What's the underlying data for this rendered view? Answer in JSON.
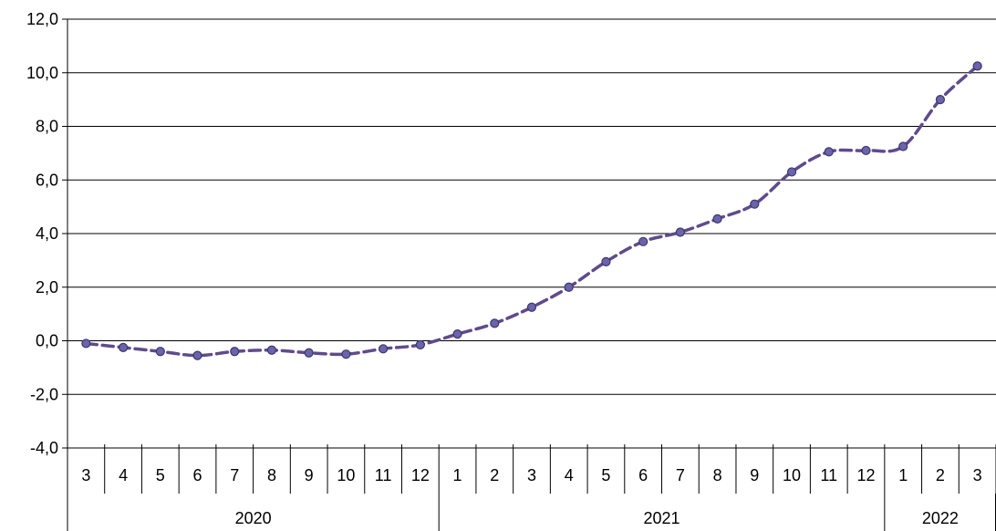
{
  "chart_data": {
    "type": "line",
    "title": "",
    "xlabel": "",
    "ylabel": "",
    "ylim": [
      -4.0,
      12.0
    ],
    "y_ticks": [
      "-4,0",
      "-2,0",
      "0,0",
      "2,0",
      "4,0",
      "6,0",
      "8,0",
      "10,0",
      "12,0"
    ],
    "grid": true,
    "legend": "none",
    "categories": [
      "3",
      "4",
      "5",
      "6",
      "7",
      "8",
      "9",
      "10",
      "11",
      "12",
      "1",
      "2",
      "3",
      "4",
      "5",
      "6",
      "7",
      "8",
      "9",
      "10",
      "11",
      "12",
      "1",
      "2",
      "3"
    ],
    "year_groups": [
      {
        "label": "2020",
        "count": 10
      },
      {
        "label": "2021",
        "count": 12
      },
      {
        "label": "2022",
        "count": 3
      }
    ],
    "series": [
      {
        "color": "#5f4b8b",
        "marker_color": "#6a64a8",
        "line_style": "dashed",
        "values": [
          -0.1,
          -0.25,
          -0.4,
          -0.55,
          -0.4,
          -0.35,
          -0.45,
          -0.5,
          -0.3,
          -0.15,
          0.25,
          0.65,
          1.25,
          2.0,
          2.95,
          3.7,
          4.05,
          4.55,
          5.1,
          6.3,
          7.05,
          7.1,
          7.25,
          9.0,
          10.25
        ]
      }
    ]
  }
}
